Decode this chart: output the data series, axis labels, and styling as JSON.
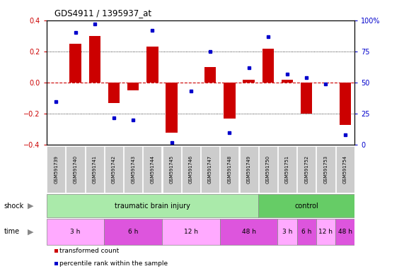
{
  "title": "GDS4911 / 1395937_at",
  "samples": [
    "GSM591739",
    "GSM591740",
    "GSM591741",
    "GSM591742",
    "GSM591743",
    "GSM591744",
    "GSM591745",
    "GSM591746",
    "GSM591747",
    "GSM591748",
    "GSM591749",
    "GSM591750",
    "GSM591751",
    "GSM591752",
    "GSM591753",
    "GSM591754"
  ],
  "bar_values": [
    0.0,
    0.25,
    0.3,
    -0.13,
    -0.05,
    0.23,
    -0.32,
    0.0,
    0.1,
    -0.23,
    0.02,
    0.22,
    0.02,
    -0.2,
    0.0,
    -0.27
  ],
  "dot_values": [
    35,
    90,
    97,
    22,
    20,
    92,
    2,
    43,
    75,
    10,
    62,
    87,
    57,
    54,
    49,
    8
  ],
  "bar_color": "#cc0000",
  "dot_color": "#0000cc",
  "ylim_left": [
    -0.4,
    0.4
  ],
  "ylim_right": [
    0,
    100
  ],
  "yticks_left": [
    -0.4,
    -0.2,
    0.0,
    0.2,
    0.4
  ],
  "yticks_right": [
    0,
    25,
    50,
    75,
    100
  ],
  "ytick_labels_right": [
    "0",
    "25",
    "50",
    "75",
    "100%"
  ],
  "zero_line_color": "#cc0000",
  "bg_color": "#cccccc",
  "shock_tbi_color": "#aaeaaa",
  "shock_ctrl_color": "#66cc66",
  "time_colors": [
    "#ffaaff",
    "#dd55dd",
    "#ffaaff",
    "#dd55dd",
    "#ffaaff",
    "#dd55dd",
    "#ffaaff",
    "#dd55dd"
  ],
  "time_groups": [
    {
      "label": "3 h",
      "start": 0,
      "end": 3
    },
    {
      "label": "6 h",
      "start": 3,
      "end": 6
    },
    {
      "label": "12 h",
      "start": 6,
      "end": 9
    },
    {
      "label": "48 h",
      "start": 9,
      "end": 12
    },
    {
      "label": "3 h",
      "start": 12,
      "end": 13
    },
    {
      "label": "6 h",
      "start": 13,
      "end": 14
    },
    {
      "label": "12 h",
      "start": 14,
      "end": 15
    },
    {
      "label": "48 h",
      "start": 15,
      "end": 16
    }
  ],
  "legend_bar": "transformed count",
  "legend_dot": "percentile rank within the sample"
}
